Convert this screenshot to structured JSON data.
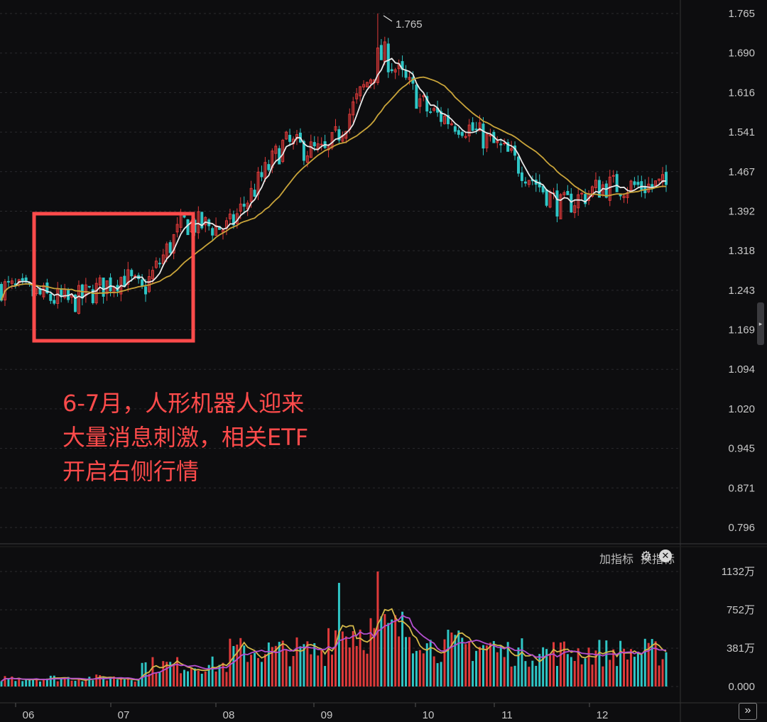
{
  "chart_data": [
    {
      "type": "candlestick",
      "title": "",
      "x_axis_labels": [
        "06",
        "07",
        "08",
        "09",
        "10",
        "11",
        "12"
      ],
      "y_ticks": [
        "1.765",
        "1.690",
        "1.616",
        "1.541",
        "1.467",
        "1.392",
        "1.318",
        "1.243",
        "1.169",
        "1.094",
        "1.020",
        "0.945",
        "0.871",
        "0.796"
      ],
      "ylim": [
        0.796,
        1.765
      ],
      "peak_label": "1.765",
      "moving_averages": [
        "short MA (white)",
        "long MA (gold)"
      ],
      "close_approx": [
        {
          "month": "06",
          "value": 1.25
        },
        {
          "month": "06 mid",
          "value": 1.22
        },
        {
          "month": "07",
          "value": 1.27
        },
        {
          "month": "07 mid",
          "value": 1.24
        },
        {
          "month": "07 end",
          "value": 1.37
        },
        {
          "month": "08",
          "value": 1.36
        },
        {
          "month": "08 mid",
          "value": 1.52
        },
        {
          "month": "09",
          "value": 1.5
        },
        {
          "month": "09 mid",
          "value": 1.69
        },
        {
          "month": "10",
          "value": 1.58
        },
        {
          "month": "10 mid",
          "value": 1.55
        },
        {
          "month": "11",
          "value": 1.5
        },
        {
          "month": "11 mid",
          "value": 1.4
        },
        {
          "month": "12",
          "value": 1.44
        },
        {
          "month": "12 end",
          "value": 1.44
        }
      ]
    },
    {
      "type": "bar",
      "title": "",
      "series": "volume",
      "y_ticks": [
        "1132万",
        "752万",
        "381万",
        "0.000"
      ],
      "ylim": [
        0,
        1132
      ],
      "unit": "万",
      "peak_value": 1132
    }
  ],
  "annotation": {
    "lines": [
      "6-7月，人形机器人迎来",
      "大量消息刺激，相关ETF",
      "开启右侧行情"
    ]
  },
  "toolbar": {
    "add_indicator": "加指标",
    "switch_indicator": "换指标",
    "settings_icon": "gear-icon",
    "close_icon": "close-icon"
  },
  "colors": {
    "up": "#e03a3a",
    "down": "#2fc6c6",
    "ma_short": "#e9e9e9",
    "ma_long": "#c9a43a",
    "vol_ma_short": "#d4b84a",
    "vol_ma_long": "#b44fd0",
    "highlight_box": "#ff4b4b"
  }
}
